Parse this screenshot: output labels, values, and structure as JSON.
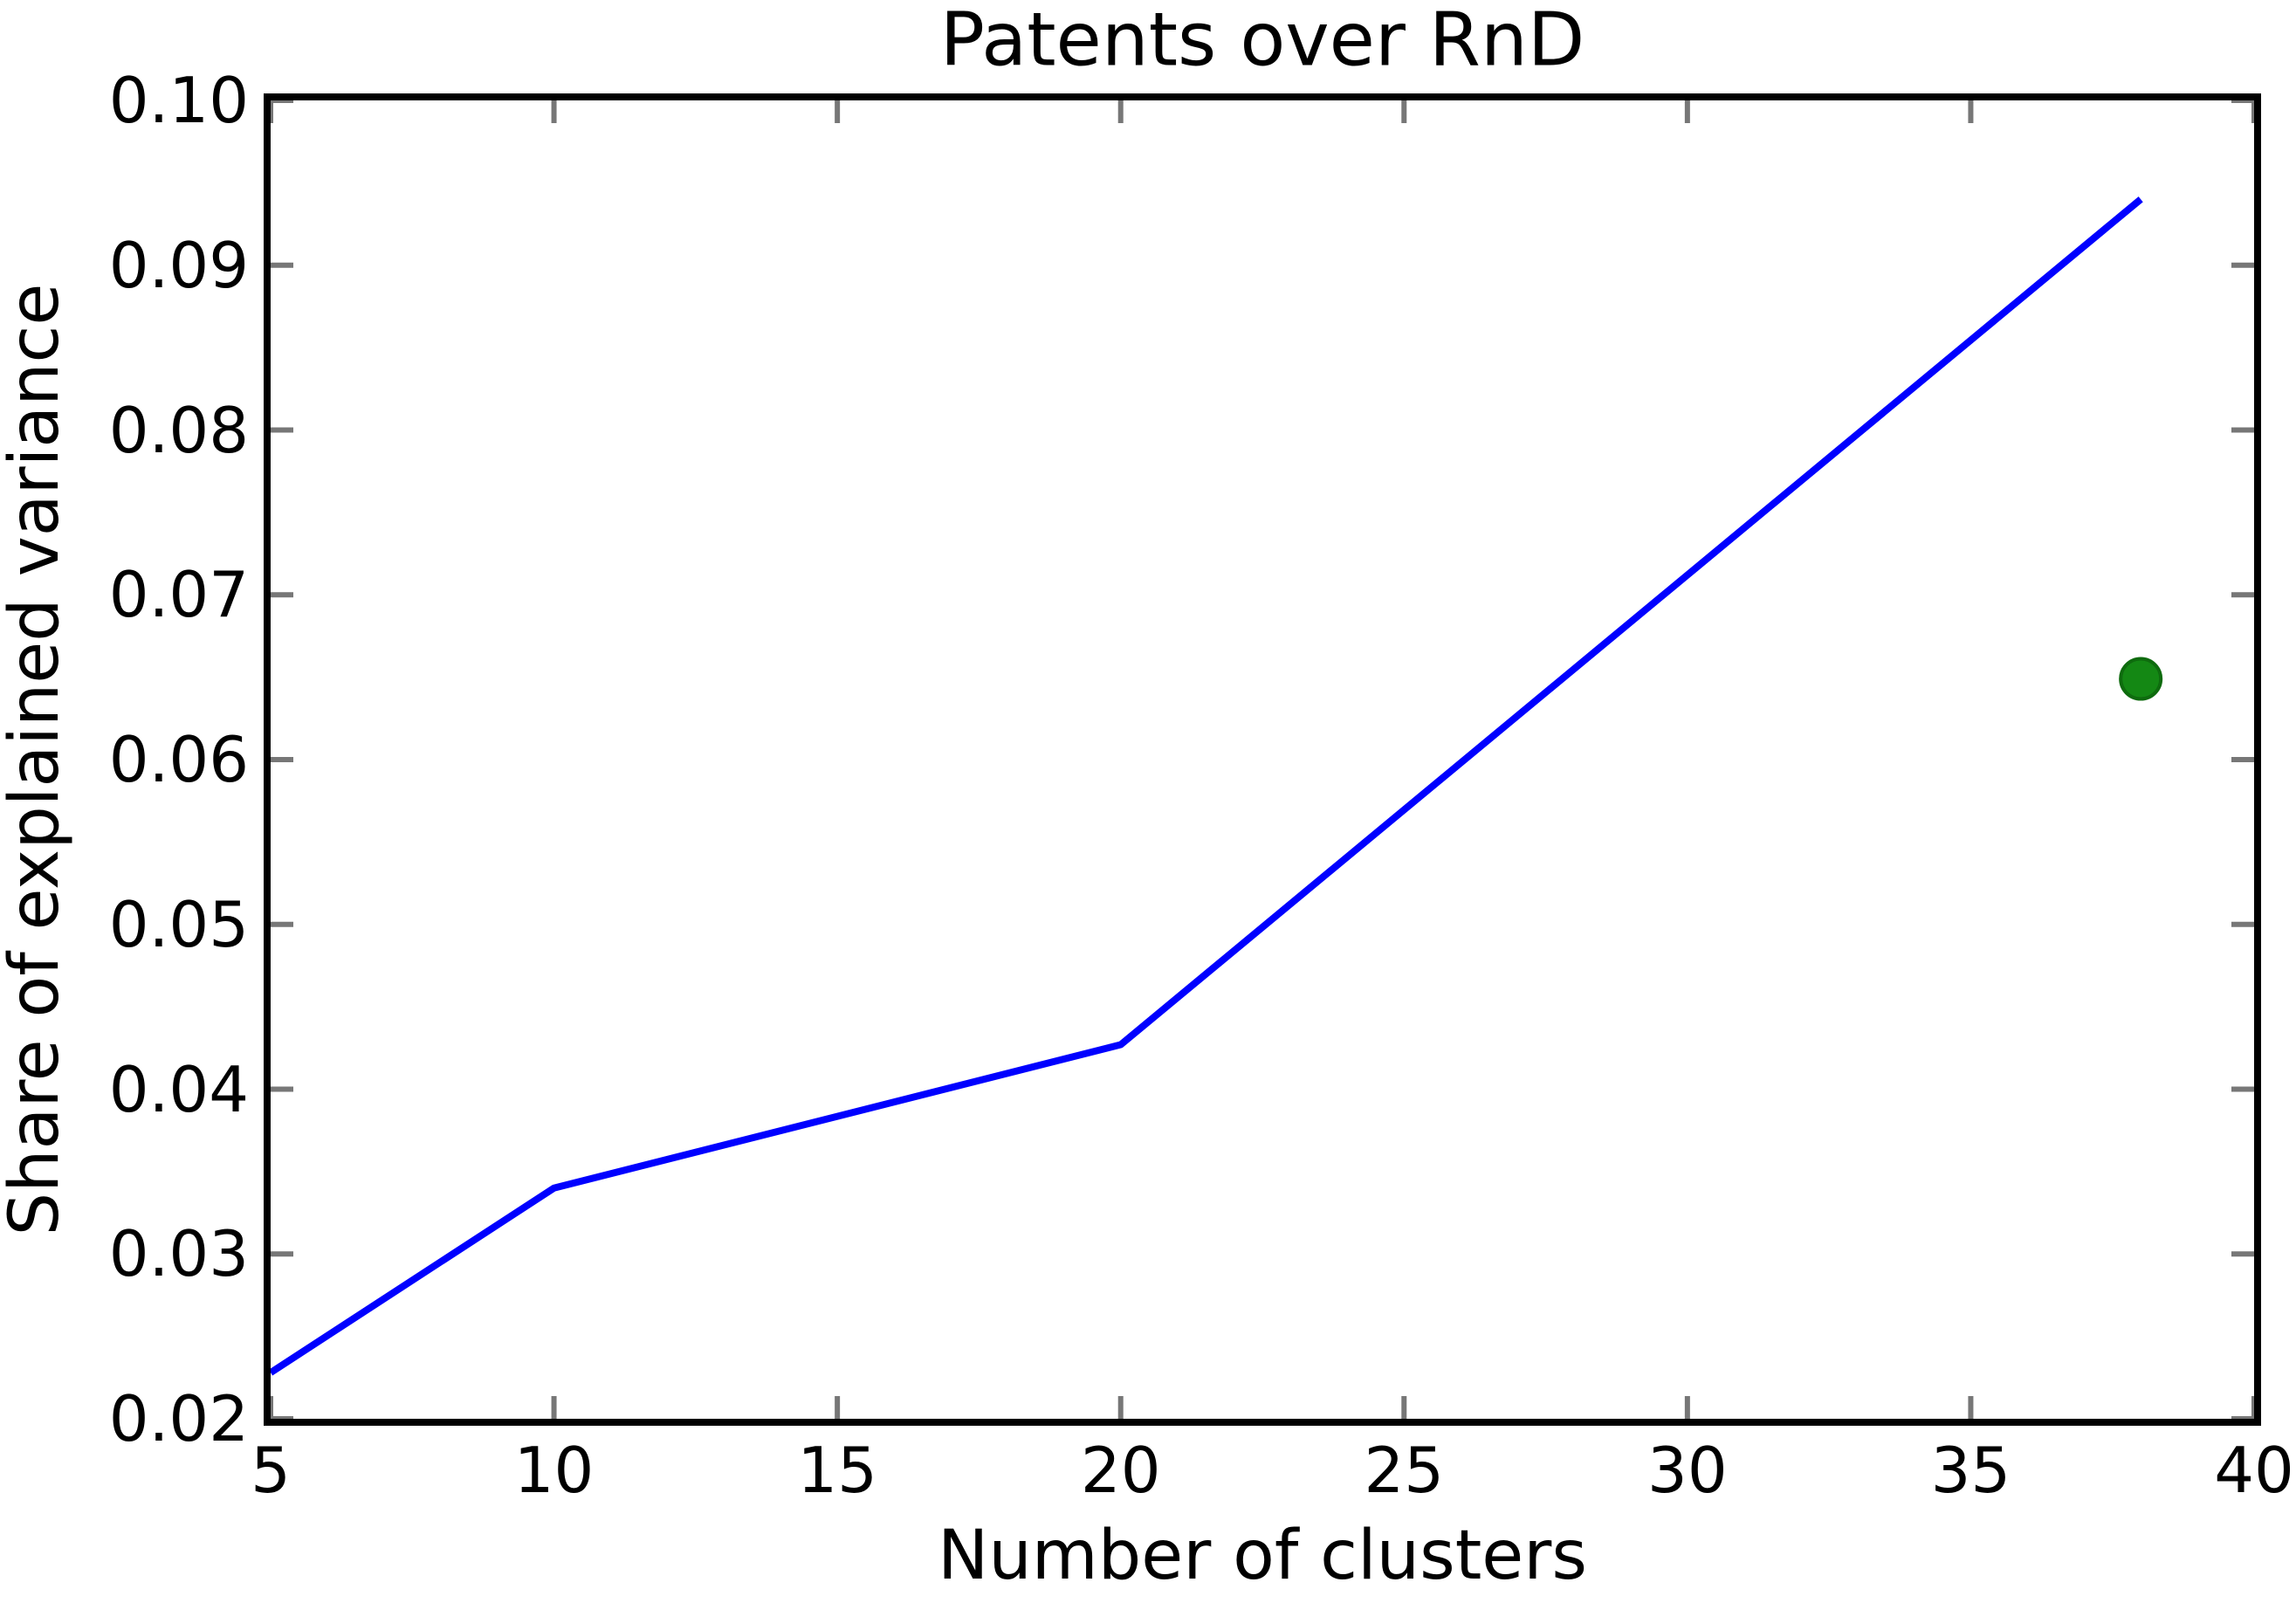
{
  "chart_data": {
    "type": "line",
    "title": "Patents over RnD",
    "xlabel": "Number of clusters",
    "ylabel": "Share of explained variance",
    "xlim": [
      5,
      40
    ],
    "ylim": [
      0.02,
      0.1
    ],
    "grid": false,
    "legend": false,
    "x_ticks": {
      "values": [
        5,
        10,
        15,
        20,
        25,
        30,
        35,
        40
      ],
      "labels": [
        "5",
        "10",
        "15",
        "20",
        "25",
        "30",
        "35",
        "40"
      ]
    },
    "y_ticks": {
      "values": [
        0.02,
        0.03,
        0.04,
        0.05,
        0.06,
        0.07,
        0.08,
        0.09,
        0.1
      ],
      "labels": [
        "0.02",
        "0.03",
        "0.04",
        "0.05",
        "0.06",
        "0.07",
        "0.08",
        "0.09",
        "0.10"
      ]
    },
    "series": [
      {
        "name": "share-of-explained-variance-line",
        "type": "line",
        "color": "#0000ff",
        "line_width": 8,
        "points": [
          [
            5,
            0.0228
          ],
          [
            10,
            0.034
          ],
          [
            20,
            0.0427
          ],
          [
            38,
            0.094
          ]
        ]
      },
      {
        "name": "selected-cluster-point",
        "type": "scatter",
        "color": "#148814",
        "edge_color": "#0e6b0e",
        "marker": "o",
        "marker_radius": 23,
        "points": [
          [
            38,
            0.0649
          ]
        ]
      }
    ],
    "frame_color": "#000000",
    "tick_color": "#777777",
    "tick_length": 26,
    "tick_width": 6,
    "background": "#ffffff"
  }
}
